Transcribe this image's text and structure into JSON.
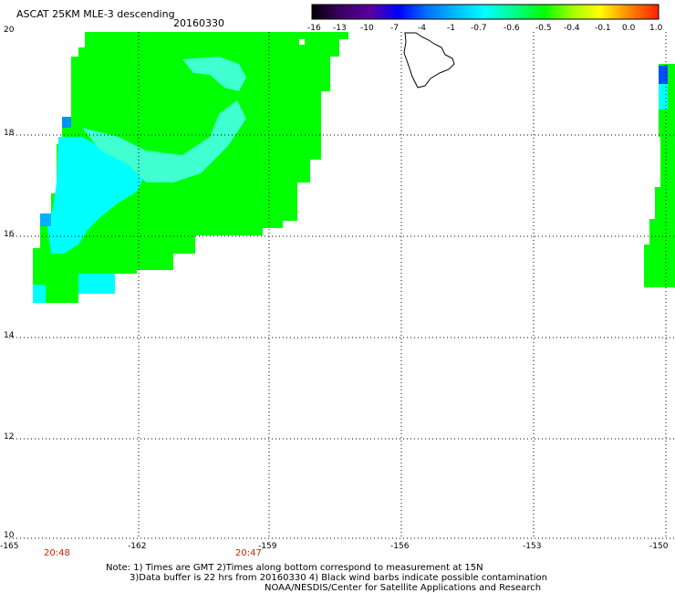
{
  "title": "ASCAT 25KM MLE-3 descending",
  "date": "20160330",
  "colorbar": {
    "ticks": [
      "-16",
      "-13",
      "-10",
      "-7",
      "-4",
      "-1",
      "-0.7",
      "-0.6",
      "-0.5",
      "-0.4",
      "-0.1",
      "0.0",
      "1.0"
    ],
    "colors": [
      "#000000",
      "#5a00a0",
      "#0000ff",
      "#0070ff",
      "#00c0ff",
      "#00ffff",
      "#00ff90",
      "#00ff00",
      "#a0ff00",
      "#ffff00",
      "#ff8000",
      "#ff2000"
    ]
  },
  "map": {
    "lat_labels": [
      "20",
      "18",
      "16",
      "14",
      "12",
      "10"
    ],
    "lon_labels": [
      "-165",
      "-162",
      "-159",
      "-156",
      "-153",
      "-150"
    ],
    "lat_range": [
      10,
      20
    ],
    "lon_range": [
      -165,
      -150
    ],
    "grid": "dotted",
    "colors": {
      "green": "#00ff00",
      "cyan": "#00ffff",
      "lightcyan": "#40ffd0",
      "blue": "#0080ff",
      "darkblue": "#0050ff"
    }
  },
  "times": [
    {
      "label": "20:48"
    },
    {
      "label": "20:47"
    }
  ],
  "notes": {
    "line1": "Note: 1) Times are GMT 2)Times along bottom correspond to measurement at 15N",
    "line2": "3)Data buffer is 22 hrs from 20160330 4) Black wind barbs indicate possible contamination",
    "line3": "NOAA/NESDIS/Center for Satellite Applications and Research"
  }
}
